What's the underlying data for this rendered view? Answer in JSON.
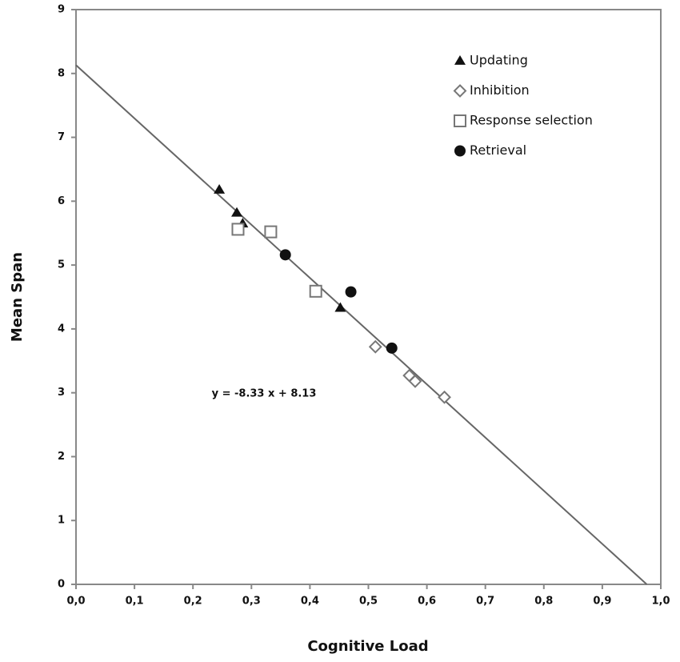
{
  "chart_data": {
    "type": "scatter",
    "xlabel": "Cognitive Load",
    "ylabel": "Mean Span",
    "xlim": [
      0,
      1
    ],
    "ylim": [
      0,
      9
    ],
    "xticks": [
      {
        "value": 0,
        "label": "0,0"
      },
      {
        "value": 0.1,
        "label": "0,1"
      },
      {
        "value": 0.2,
        "label": "0,2"
      },
      {
        "value": 0.3,
        "label": "0,3"
      },
      {
        "value": 0.4,
        "label": "0,4"
      },
      {
        "value": 0.5,
        "label": "0,5"
      },
      {
        "value": 0.6,
        "label": "0,6"
      },
      {
        "value": 0.7,
        "label": "0,7"
      },
      {
        "value": 0.8,
        "label": "0,8"
      },
      {
        "value": 0.9,
        "label": "0,9"
      },
      {
        "value": 1,
        "label": "1,0"
      }
    ],
    "yticks": [
      0,
      1,
      2,
      3,
      4,
      5,
      6,
      7,
      8,
      9
    ],
    "grid": false,
    "legend": "upper-right",
    "series": [
      {
        "name": "Updating",
        "marker": "triangle",
        "color": "#111111",
        "x": [
          0.245,
          0.275,
          0.285,
          0.452
        ],
        "values": [
          6.18,
          5.82,
          5.65,
          4.33
        ]
      },
      {
        "name": "Inhibition",
        "marker": "diamond-open",
        "color": "#777777",
        "x": [
          0.512,
          0.57,
          0.58,
          0.63
        ],
        "values": [
          3.72,
          3.27,
          3.18,
          2.93
        ]
      },
      {
        "name": "Response selection",
        "marker": "square-open",
        "color": "#777777",
        "x": [
          0.277,
          0.333,
          0.41
        ],
        "values": [
          5.56,
          5.52,
          4.59
        ]
      },
      {
        "name": "Retrieval",
        "marker": "circle",
        "color": "#111111",
        "x": [
          0.358,
          0.47,
          0.54
        ],
        "values": [
          5.16,
          4.58,
          3.7
        ]
      }
    ],
    "trendline": {
      "slope": -8.33,
      "intercept": 8.13,
      "color": "#666666",
      "label": "y = -8.33 x + 8.13"
    }
  }
}
